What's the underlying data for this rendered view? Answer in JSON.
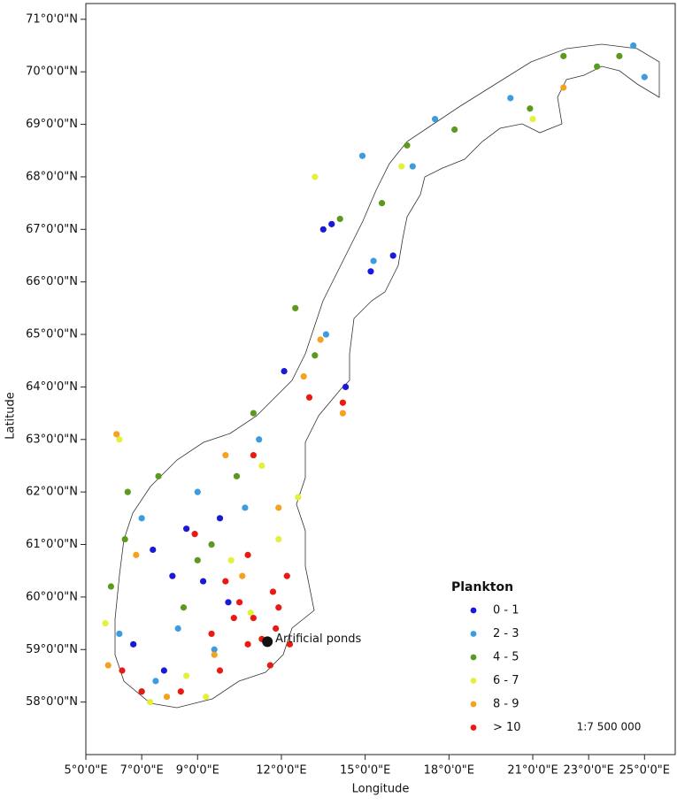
{
  "chart_data": {
    "type": "scatter",
    "x_label": "Longitude",
    "y_label": "Latitude",
    "xlim": [
      5,
      26.1
    ],
    "ylim": [
      57,
      71.3
    ],
    "xticks": [
      {
        "value": 5,
        "label": "5°0'0\"E"
      },
      {
        "value": 7,
        "label": "7°0'0\"E"
      },
      {
        "value": 9,
        "label": "9°0'0\"E"
      },
      {
        "value": 12,
        "label": "12°0'0\"E"
      },
      {
        "value": 15,
        "label": "15°0'0\"E"
      },
      {
        "value": 18,
        "label": "18°0'0\"E"
      },
      {
        "value": 21,
        "label": "21°0'0\"E"
      },
      {
        "value": 23,
        "label": "23°0'0\"E"
      },
      {
        "value": 25,
        "label": "25°0'0\"E"
      }
    ],
    "yticks": [
      {
        "value": 58,
        "label": "58°0'0\"N"
      },
      {
        "value": 59,
        "label": "59°0'0\"N"
      },
      {
        "value": 60,
        "label": "60°0'0\"N"
      },
      {
        "value": 61,
        "label": "61°0'0\"N"
      },
      {
        "value": 62,
        "label": "62°0'0\"N"
      },
      {
        "value": 63,
        "label": "63°0'0\"N"
      },
      {
        "value": 64,
        "label": "64°0'0\"N"
      },
      {
        "value": 65,
        "label": "65°0'0\"N"
      },
      {
        "value": 66,
        "label": "66°0'0\"N"
      },
      {
        "value": 67,
        "label": "67°0'0\"N"
      },
      {
        "value": 68,
        "label": "68°0'0\"N"
      },
      {
        "value": 69,
        "label": "69°0'0\"N"
      },
      {
        "value": 70,
        "label": "70°0'0\"N"
      },
      {
        "value": 71,
        "label": "71°0'0\"N"
      }
    ],
    "legend_title": "Plankton",
    "legend_position": "lower right",
    "scale_text": "1:7 500 000",
    "annotations": [
      {
        "text": "Artificial ponds",
        "x": 11.5,
        "y": 59.15
      }
    ],
    "series": [
      {
        "name": "0 - 1",
        "color": "#1a1ad6",
        "x": [
          7.4,
          8.1,
          9.2,
          7.8,
          13.8,
          13.5,
          15.2,
          14.3,
          9.8,
          6.7,
          12.1,
          10.1,
          8.6,
          16.0
        ],
        "values": [
          60.9,
          60.4,
          60.3,
          58.6,
          67.1,
          67.0,
          66.2,
          64.0,
          61.5,
          59.1,
          64.3,
          59.9,
          61.3,
          66.5
        ]
      },
      {
        "name": "2 - 3",
        "color": "#3d9be0",
        "x": [
          6.2,
          7.0,
          9.0,
          14.9,
          17.5,
          24.6,
          25.0,
          13.6,
          15.3,
          10.7,
          8.3,
          11.2,
          20.2,
          7.5,
          9.6,
          16.7
        ],
        "values": [
          59.3,
          61.5,
          62.0,
          68.4,
          69.1,
          70.5,
          69.9,
          65.0,
          66.4,
          61.7,
          59.4,
          63.0,
          69.5,
          58.4,
          59.0,
          68.2
        ]
      },
      {
        "name": "4 - 5",
        "color": "#5c9a1f",
        "x": [
          5.9,
          6.4,
          7.6,
          9.5,
          10.4,
          14.1,
          15.6,
          16.5,
          18.2,
          22.1,
          24.1,
          12.5,
          11.0,
          8.5,
          7.0,
          20.9,
          23.3,
          13.2,
          6.5,
          9.0
        ],
        "values": [
          60.2,
          61.1,
          62.3,
          61.0,
          62.3,
          67.2,
          67.5,
          68.6,
          68.9,
          70.3,
          70.3,
          65.5,
          63.5,
          59.8,
          58.2,
          69.3,
          70.1,
          64.6,
          62.0,
          60.7
        ]
      },
      {
        "name": "6 - 7",
        "color": "#e3f03c",
        "x": [
          7.3,
          8.6,
          10.2,
          11.9,
          12.6,
          6.2,
          13.2,
          16.3,
          21.0,
          11.3,
          9.3,
          5.7,
          10.9
        ],
        "values": [
          58.0,
          58.5,
          60.7,
          61.1,
          61.9,
          63.0,
          68.0,
          68.2,
          69.1,
          62.5,
          58.1,
          59.5,
          59.7
        ]
      },
      {
        "name": "8 - 9",
        "color": "#f5a122",
        "x": [
          5.8,
          6.8,
          7.9,
          10.0,
          12.8,
          14.2,
          11.9,
          9.6,
          10.6,
          6.1,
          13.4,
          22.1
        ],
        "values": [
          58.7,
          60.8,
          58.1,
          62.7,
          64.2,
          63.5,
          61.7,
          58.9,
          60.4,
          63.1,
          64.9,
          69.7
        ]
      },
      {
        "name": "> 10",
        "color": "#e81a12",
        "x": [
          10.5,
          11.0,
          11.3,
          11.8,
          10.8,
          11.6,
          11.9,
          10.3,
          10.0,
          9.5,
          8.4,
          7.0,
          6.3,
          13.0,
          14.2,
          10.8,
          11.7,
          12.2,
          8.9,
          11.0,
          9.8,
          12.3
        ],
        "values": [
          59.9,
          59.6,
          59.2,
          59.4,
          59.1,
          58.7,
          59.8,
          59.6,
          60.3,
          59.3,
          58.2,
          58.2,
          58.6,
          63.8,
          63.7,
          60.8,
          60.1,
          60.4,
          61.2,
          62.7,
          58.6,
          59.1
        ]
      }
    ]
  }
}
